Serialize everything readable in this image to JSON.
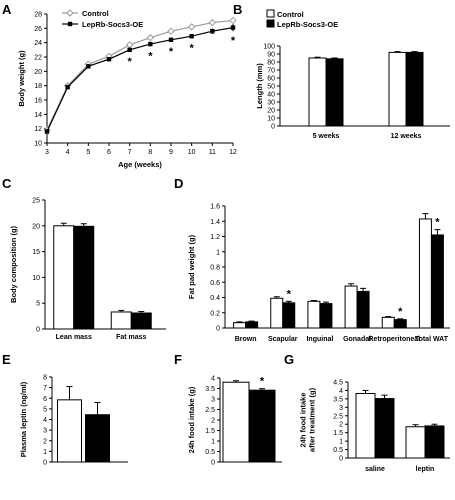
{
  "colors": {
    "control": "#ffffff",
    "oe": "#000000",
    "control_line": "#9a9a9a",
    "axis": "#000000"
  },
  "chart_data": [
    {
      "panel": "A",
      "type": "line",
      "xlabel": "Age (weeks)",
      "ylabel": "Body weight (g)",
      "xlim": [
        3,
        12
      ],
      "ylim": [
        10,
        28
      ],
      "xticks": [
        3,
        4,
        5,
        6,
        7,
        8,
        9,
        10,
        11,
        12
      ],
      "yticks": [
        10,
        12,
        14,
        16,
        18,
        20,
        22,
        24,
        26,
        28
      ],
      "series": [
        {
          "name": "Control",
          "x": [
            3,
            4,
            5,
            6,
            7,
            8,
            9,
            10,
            11,
            12
          ],
          "y": [
            11.8,
            18.0,
            21.0,
            22.1,
            23.7,
            24.7,
            25.6,
            26.2,
            26.8,
            27.1
          ],
          "err": [
            0.3,
            0.3,
            0.3,
            0.3,
            0.3,
            0.3,
            0.3,
            0.3,
            0.3,
            0.4
          ]
        },
        {
          "name": "LepRb-Socs3-OE",
          "x": [
            3,
            4,
            5,
            6,
            7,
            8,
            9,
            10,
            11,
            12
          ],
          "y": [
            11.6,
            17.8,
            20.7,
            21.7,
            23.0,
            23.8,
            24.4,
            24.9,
            25.6,
            26.1
          ],
          "err": [
            0.3,
            0.3,
            0.3,
            0.3,
            0.3,
            0.3,
            0.3,
            0.3,
            0.4,
            0.5
          ]
        }
      ],
      "annotations": [
        {
          "x": 7,
          "text": "*"
        },
        {
          "x": 8,
          "text": "*"
        },
        {
          "x": 9,
          "text": "*"
        },
        {
          "x": 10,
          "text": "*"
        },
        {
          "x": 12,
          "text": "*"
        }
      ]
    },
    {
      "panel": "B",
      "type": "bar",
      "categories": [
        "5 weeks",
        "12 weeks"
      ],
      "ylabel": "Length (mm)",
      "ylim": [
        0,
        100
      ],
      "yticks": [
        0,
        10,
        20,
        30,
        40,
        50,
        60,
        70,
        80,
        90,
        100
      ],
      "series": [
        {
          "name": "Control",
          "values": [
            85,
            92
          ],
          "err": [
            1,
            1
          ]
        },
        {
          "name": "LepRb-Socs3-OE",
          "values": [
            84,
            92
          ],
          "err": [
            1,
            1
          ]
        }
      ],
      "annotations": []
    },
    {
      "panel": "C",
      "type": "bar",
      "categories": [
        "Lean mass",
        "Fat mass"
      ],
      "ylabel": "Body composition (g)",
      "ylim": [
        0,
        25
      ],
      "yticks": [
        0,
        5,
        10,
        15,
        20,
        25
      ],
      "series": [
        {
          "values": [
            20.0,
            3.3
          ],
          "err": [
            0.5,
            0.3
          ]
        },
        {
          "values": [
            19.9,
            3.1
          ],
          "err": [
            0.5,
            0.3
          ]
        }
      ],
      "annotations": []
    },
    {
      "panel": "D",
      "type": "bar",
      "categories": [
        "Brown",
        "Scapular",
        "Inguinal",
        "Gonadal",
        "Retroperitoneal",
        "Total WAT"
      ],
      "ylabel": "Fat pad weight (g)",
      "ylim": [
        0,
        1.6
      ],
      "yticks": [
        0,
        0.2,
        0.4,
        0.6,
        0.8,
        1,
        1.2,
        1.4,
        1.6
      ],
      "ytick_labels": [
        "0",
        "0.2",
        "0.4",
        "0.6",
        "0.8",
        "1",
        "1.2",
        "1.4",
        "1.6"
      ],
      "series": [
        {
          "values": [
            0.07,
            0.39,
            0.35,
            0.55,
            0.14,
            1.43
          ],
          "err": [
            0.01,
            0.02,
            0.01,
            0.03,
            0.01,
            0.07
          ]
        },
        {
          "values": [
            0.08,
            0.33,
            0.32,
            0.48,
            0.11,
            1.22
          ],
          "err": [
            0.01,
            0.02,
            0.02,
            0.04,
            0.01,
            0.07
          ]
        }
      ],
      "annotations": [
        {
          "index": 1,
          "text": "*"
        },
        {
          "index": 4,
          "text": "*"
        },
        {
          "index": 5,
          "text": "*"
        }
      ]
    },
    {
      "panel": "E",
      "type": "bar",
      "categories": [
        ""
      ],
      "ylabel": "Plasma leptin (ng/ml)",
      "ylim": [
        0,
        8
      ],
      "yticks": [
        0,
        1,
        2,
        3,
        4,
        5,
        6,
        7,
        8
      ],
      "series": [
        {
          "values": [
            5.85
          ],
          "err": [
            1.25
          ]
        },
        {
          "values": [
            4.45
          ],
          "err": [
            1.15
          ]
        }
      ],
      "annotations": []
    },
    {
      "panel": "F",
      "type": "bar",
      "categories": [
        ""
      ],
      "ylabel": "24h food intake (g)",
      "ylim": [
        0,
        4
      ],
      "yticks": [
        0,
        0.5,
        1,
        1.5,
        2,
        2.5,
        3,
        3.5,
        4
      ],
      "ytick_labels": [
        "0",
        "0.5",
        "1",
        "1.5",
        "2",
        "2.5",
        "3",
        "3.5",
        "4"
      ],
      "series": [
        {
          "values": [
            3.8
          ],
          "err": [
            0.07
          ]
        },
        {
          "values": [
            3.42
          ],
          "err": [
            0.07
          ]
        }
      ],
      "annotations": [
        {
          "index": 0,
          "text": "*"
        }
      ]
    },
    {
      "panel": "G",
      "type": "bar",
      "categories": [
        "saline",
        "leptin"
      ],
      "ylabel": "24h food intake after treatment (g)",
      "ylabel_lines": [
        "24h food intake",
        "after treatment (g)"
      ],
      "ylim": [
        0,
        4.5
      ],
      "yticks": [
        0,
        0.5,
        1,
        1.5,
        2,
        2.5,
        3,
        3.5,
        4,
        4.5
      ],
      "ytick_labels": [
        "0",
        "0.5",
        "1",
        "1.5",
        "2",
        "2.5",
        "3",
        "3.5",
        "4",
        "4.5"
      ],
      "series": [
        {
          "values": [
            3.82,
            1.85
          ],
          "err": [
            0.18,
            0.12
          ]
        },
        {
          "values": [
            3.52,
            1.9
          ],
          "err": [
            0.2,
            0.1
          ]
        }
      ],
      "annotations": []
    }
  ]
}
